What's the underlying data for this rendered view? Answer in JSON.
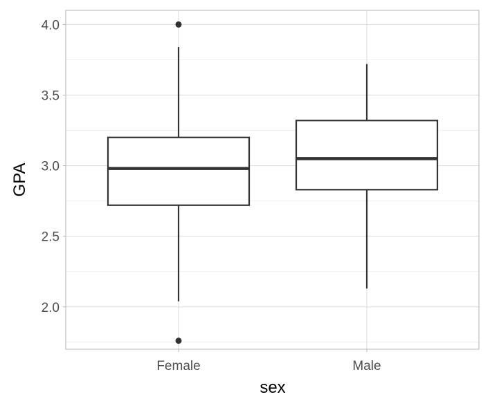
{
  "chart_data": {
    "type": "box",
    "xlabel": "sex",
    "ylabel": "GPA",
    "categories": [
      "Female",
      "Male"
    ],
    "ylim": [
      1.7,
      4.1
    ],
    "yticks": [
      2.0,
      2.5,
      3.0,
      3.5,
      4.0
    ],
    "ytick_labels": [
      "2.0",
      "2.5",
      "3.0",
      "3.5",
      "4.0"
    ],
    "grid": true,
    "boxes": [
      {
        "category": "Female",
        "whisker_low": 2.04,
        "q1": 2.72,
        "median": 2.98,
        "q3": 3.2,
        "whisker_high": 3.84,
        "outliers": [
          4.0,
          1.76
        ]
      },
      {
        "category": "Male",
        "whisker_low": 2.13,
        "q1": 2.83,
        "median": 3.05,
        "q3": 3.32,
        "whisker_high": 3.72,
        "outliers": []
      }
    ],
    "colors": {
      "panel_border": "#b3b3b3",
      "grid_major": "#e0e0e0",
      "grid_minor": "#efefef",
      "box_line": "#333333",
      "box_fill": "#ffffff",
      "outlier": "#333333"
    }
  }
}
